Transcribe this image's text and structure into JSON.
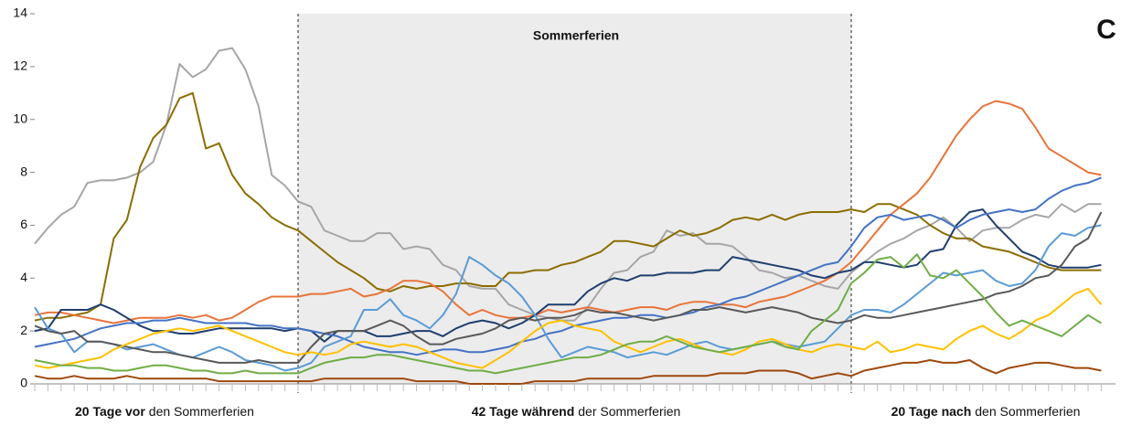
{
  "chart_data": {
    "type": "line",
    "annotations": {
      "shaded_label": "Sommerferien",
      "panel": "C"
    },
    "periods": [
      {
        "bold": "20 Tage vor",
        "text": "den Sommerferien"
      },
      {
        "bold": "42 Tage während",
        "text": "der Sommerferien"
      },
      {
        "bold": "20 Tage nach",
        "text": "den Sommerferien"
      }
    ],
    "categories": [
      null,
      null,
      null,
      null,
      null,
      null,
      null,
      null,
      null,
      null,
      null,
      null,
      null,
      null,
      null,
      null,
      null,
      null,
      null,
      null,
      null,
      null,
      null,
      null,
      null,
      null,
      null,
      null,
      null,
      null,
      null,
      null,
      null,
      null,
      null,
      null,
      null,
      null,
      null,
      null,
      null,
      null,
      null,
      null,
      null,
      null,
      null,
      null,
      null,
      null,
      null,
      null,
      null,
      null,
      null,
      null,
      null,
      null,
      null,
      null,
      null,
      null,
      null,
      null,
      null,
      null,
      null,
      null,
      null,
      null,
      null,
      null,
      null,
      null,
      null,
      null,
      null,
      null,
      null,
      null,
      null,
      null
    ],
    "ylim": [
      0,
      14
    ],
    "yticks": [
      0,
      2,
      4,
      6,
      8,
      10,
      12,
      14
    ],
    "series": [
      {
        "color": "#a6a6a6",
        "values": [
          5.3,
          5.9,
          6.4,
          6.7,
          7.6,
          7.7,
          7.7,
          7.8,
          8.0,
          8.4,
          9.8,
          12.1,
          11.6,
          11.9,
          12.6,
          12.7,
          11.9,
          10.5,
          7.9,
          7.5,
          6.9,
          6.7,
          5.8,
          5.6,
          5.4,
          5.4,
          5.7,
          5.7,
          5.1,
          5.2,
          5.1,
          4.5,
          4.3,
          3.7,
          3.6,
          3.6,
          3.0,
          2.8,
          2.6,
          2.5,
          2.4,
          2.4,
          2.9,
          3.6,
          4.2,
          4.3,
          4.8,
          5.0,
          5.8,
          5.6,
          5.7,
          5.3,
          5.3,
          5.2,
          4.8,
          4.3,
          4.2,
          4.0,
          4.1,
          3.9,
          3.7,
          3.6,
          4.2,
          4.6,
          5.0,
          5.3,
          5.5,
          5.8,
          6.0,
          6.3,
          5.9,
          5.4,
          5.8,
          5.9,
          5.9,
          6.2,
          6.4,
          6.3,
          6.8,
          6.5,
          6.8,
          6.8
        ]
      },
      {
        "color": "#8b6d00",
        "values": [
          2.4,
          2.5,
          2.5,
          2.6,
          2.7,
          3.0,
          5.5,
          6.2,
          8.2,
          9.3,
          9.8,
          10.8,
          11.0,
          8.9,
          9.1,
          7.9,
          7.2,
          6.8,
          6.3,
          6.0,
          5.8,
          5.4,
          5.0,
          4.6,
          4.3,
          4.0,
          3.6,
          3.5,
          3.7,
          3.6,
          3.7,
          3.7,
          3.8,
          3.8,
          3.7,
          3.7,
          4.2,
          4.2,
          4.3,
          4.3,
          4.5,
          4.6,
          4.8,
          5.0,
          5.4,
          5.4,
          5.3,
          5.2,
          5.5,
          5.8,
          5.6,
          5.7,
          5.9,
          6.2,
          6.3,
          6.2,
          6.4,
          6.2,
          6.4,
          6.5,
          6.5,
          6.5,
          6.6,
          6.5,
          6.8,
          6.8,
          6.6,
          6.4,
          6.0,
          5.7,
          5.5,
          5.5,
          5.2,
          5.1,
          5.0,
          4.8,
          4.6,
          4.4,
          4.3,
          4.3,
          4.3,
          4.3
        ]
      },
      {
        "color": "#e8743b",
        "values": [
          2.6,
          2.7,
          2.7,
          2.6,
          2.5,
          2.4,
          2.3,
          2.4,
          2.5,
          2.5,
          2.5,
          2.6,
          2.5,
          2.6,
          2.4,
          2.5,
          2.8,
          3.1,
          3.3,
          3.3,
          3.3,
          3.4,
          3.4,
          3.5,
          3.6,
          3.3,
          3.4,
          3.6,
          3.9,
          3.9,
          3.8,
          3.5,
          3.0,
          2.6,
          2.8,
          2.6,
          2.5,
          2.5,
          2.6,
          2.8,
          2.7,
          2.8,
          2.9,
          2.8,
          2.7,
          2.8,
          2.9,
          2.9,
          2.8,
          3.0,
          3.1,
          3.1,
          3.0,
          3.0,
          2.9,
          3.1,
          3.2,
          3.3,
          3.5,
          3.7,
          3.9,
          4.2,
          4.6,
          5.2,
          5.8,
          6.4,
          6.8,
          7.2,
          7.8,
          8.6,
          9.4,
          10.0,
          10.5,
          10.7,
          10.6,
          10.4,
          9.7,
          8.9,
          8.6,
          8.3,
          8.0,
          7.9
        ]
      },
      {
        "color": "#1f3e6e",
        "values": [
          2.0,
          2.1,
          2.8,
          2.8,
          2.8,
          3.0,
          2.8,
          2.5,
          2.2,
          2.0,
          2.0,
          1.9,
          1.9,
          2.0,
          2.1,
          2.1,
          2.1,
          2.1,
          2.1,
          2.0,
          2.1,
          2.0,
          1.6,
          2.0,
          2.0,
          2.0,
          1.8,
          1.8,
          1.9,
          2.0,
          2.0,
          1.8,
          2.1,
          2.3,
          2.4,
          2.3,
          2.1,
          2.3,
          2.6,
          3.0,
          3.0,
          3.0,
          3.5,
          3.8,
          4.0,
          3.9,
          4.1,
          4.1,
          4.2,
          4.2,
          4.2,
          4.3,
          4.3,
          4.8,
          4.7,
          4.6,
          4.5,
          4.4,
          4.3,
          4.1,
          4.0,
          4.2,
          4.3,
          4.6,
          4.6,
          4.5,
          4.4,
          4.5,
          5.0,
          5.1,
          6.0,
          6.5,
          6.6,
          6.0,
          5.5,
          5.0,
          4.8,
          4.5,
          4.4,
          4.4,
          4.4,
          4.5
        ]
      },
      {
        "color": "#4472c4",
        "values": [
          1.4,
          1.5,
          1.6,
          1.7,
          1.9,
          2.1,
          2.2,
          2.3,
          2.3,
          2.4,
          2.4,
          2.5,
          2.4,
          2.3,
          2.3,
          2.3,
          2.3,
          2.2,
          2.2,
          2.1,
          2.1,
          2.0,
          1.9,
          1.8,
          1.6,
          1.4,
          1.3,
          1.2,
          1.2,
          1.1,
          1.2,
          1.3,
          1.3,
          1.2,
          1.2,
          1.3,
          1.4,
          1.6,
          1.7,
          1.9,
          2.0,
          2.2,
          2.3,
          2.4,
          2.5,
          2.5,
          2.6,
          2.6,
          2.5,
          2.6,
          2.7,
          2.9,
          3.0,
          3.2,
          3.3,
          3.5,
          3.7,
          3.9,
          4.1,
          4.3,
          4.5,
          4.6,
          5.2,
          5.9,
          6.3,
          6.4,
          6.2,
          6.3,
          6.4,
          6.2,
          5.9,
          6.2,
          6.4,
          6.5,
          6.6,
          6.5,
          6.6,
          7.0,
          7.3,
          7.5,
          7.6,
          7.8
        ]
      },
      {
        "color": "#5b9bd5",
        "values": [
          2.9,
          2.1,
          1.9,
          1.2,
          1.6,
          1.6,
          1.5,
          1.3,
          1.4,
          1.5,
          1.3,
          1.1,
          1.0,
          1.2,
          1.4,
          1.2,
          0.9,
          0.8,
          0.7,
          0.5,
          0.6,
          0.8,
          1.4,
          1.6,
          1.8,
          2.8,
          2.8,
          3.2,
          2.6,
          2.4,
          2.1,
          2.6,
          3.4,
          4.8,
          4.5,
          4.1,
          3.8,
          3.3,
          2.6,
          1.7,
          1.0,
          1.2,
          1.4,
          1.3,
          1.2,
          1.0,
          1.1,
          1.2,
          1.1,
          1.3,
          1.5,
          1.6,
          1.4,
          1.3,
          1.4,
          1.5,
          1.6,
          1.5,
          1.4,
          1.5,
          1.6,
          2.1,
          2.6,
          2.8,
          2.8,
          2.7,
          3.0,
          3.4,
          3.8,
          4.2,
          4.1,
          4.2,
          4.3,
          3.9,
          3.7,
          3.8,
          4.3,
          5.2,
          5.7,
          5.6,
          5.9,
          6.0
        ]
      },
      {
        "color": "#595959",
        "values": [
          2.2,
          2.0,
          1.9,
          2.0,
          1.6,
          1.6,
          1.5,
          1.4,
          1.3,
          1.2,
          1.2,
          1.1,
          1.0,
          0.9,
          0.8,
          0.8,
          0.8,
          0.9,
          0.8,
          0.8,
          0.8,
          1.4,
          1.9,
          2.0,
          2.0,
          2.0,
          2.2,
          2.4,
          2.2,
          1.8,
          1.5,
          1.5,
          1.7,
          1.8,
          1.9,
          2.1,
          2.4,
          2.5,
          2.4,
          2.5,
          2.5,
          2.6,
          2.8,
          2.7,
          2.7,
          2.6,
          2.5,
          2.4,
          2.5,
          2.6,
          2.8,
          2.8,
          2.9,
          2.8,
          2.7,
          2.8,
          2.9,
          2.8,
          2.7,
          2.5,
          2.4,
          2.3,
          2.4,
          2.6,
          2.5,
          2.5,
          2.6,
          2.7,
          2.8,
          2.9,
          3.0,
          3.1,
          3.2,
          3.4,
          3.5,
          3.7,
          4.0,
          4.1,
          4.5,
          5.2,
          5.5,
          6.5
        ]
      },
      {
        "color": "#ffc000",
        "values": [
          0.7,
          0.6,
          0.7,
          0.8,
          0.9,
          1.0,
          1.3,
          1.5,
          1.7,
          1.9,
          2.0,
          2.1,
          2.0,
          2.1,
          2.2,
          2.0,
          1.8,
          1.6,
          1.4,
          1.2,
          1.1,
          1.2,
          1.1,
          1.2,
          1.5,
          1.6,
          1.5,
          1.4,
          1.5,
          1.4,
          1.2,
          1.0,
          0.8,
          0.7,
          0.6,
          0.9,
          1.2,
          1.6,
          2.0,
          2.3,
          2.4,
          2.2,
          2.1,
          2.0,
          1.6,
          1.4,
          1.2,
          1.4,
          1.6,
          1.7,
          1.5,
          1.3,
          1.2,
          1.1,
          1.3,
          1.6,
          1.7,
          1.5,
          1.3,
          1.2,
          1.4,
          1.5,
          1.4,
          1.3,
          1.6,
          1.2,
          1.3,
          1.5,
          1.4,
          1.3,
          1.7,
          2.0,
          2.2,
          1.9,
          1.7,
          2.0,
          2.4,
          2.6,
          3.0,
          3.4,
          3.6,
          3.0
        ]
      },
      {
        "color": "#70ad47",
        "values": [
          0.9,
          0.8,
          0.7,
          0.7,
          0.6,
          0.6,
          0.5,
          0.5,
          0.6,
          0.7,
          0.7,
          0.6,
          0.5,
          0.5,
          0.4,
          0.4,
          0.5,
          0.4,
          0.4,
          0.4,
          0.4,
          0.6,
          0.8,
          0.9,
          1.0,
          1.0,
          1.1,
          1.1,
          1.0,
          0.9,
          0.8,
          0.7,
          0.6,
          0.5,
          0.5,
          0.4,
          0.5,
          0.6,
          0.7,
          0.8,
          0.9,
          1.0,
          1.0,
          1.1,
          1.3,
          1.5,
          1.6,
          1.6,
          1.8,
          1.6,
          1.4,
          1.3,
          1.2,
          1.3,
          1.4,
          1.5,
          1.6,
          1.4,
          1.3,
          2.0,
          2.4,
          2.8,
          3.8,
          4.2,
          4.7,
          4.8,
          4.4,
          4.9,
          4.1,
          4.0,
          4.3,
          3.8,
          3.3,
          2.7,
          2.2,
          2.4,
          2.2,
          2.0,
          1.8,
          2.2,
          2.6,
          2.3
        ]
      },
      {
        "color": "#9e480e",
        "values": [
          0.3,
          0.2,
          0.2,
          0.3,
          0.2,
          0.2,
          0.2,
          0.3,
          0.2,
          0.2,
          0.2,
          0.2,
          0.2,
          0.2,
          0.1,
          0.1,
          0.1,
          0.1,
          0.1,
          0.1,
          0.1,
          0.1,
          0.2,
          0.2,
          0.2,
          0.2,
          0.2,
          0.2,
          0.2,
          0.1,
          0.1,
          0.1,
          0.1,
          0.0,
          0.0,
          0.0,
          0.0,
          0.0,
          0.1,
          0.1,
          0.1,
          0.1,
          0.2,
          0.2,
          0.2,
          0.2,
          0.2,
          0.3,
          0.3,
          0.3,
          0.3,
          0.3,
          0.4,
          0.4,
          0.4,
          0.5,
          0.5,
          0.5,
          0.4,
          0.2,
          0.3,
          0.4,
          0.3,
          0.5,
          0.6,
          0.7,
          0.8,
          0.8,
          0.9,
          0.8,
          0.8,
          0.9,
          0.6,
          0.4,
          0.6,
          0.7,
          0.8,
          0.8,
          0.7,
          0.6,
          0.6,
          0.5
        ]
      }
    ]
  }
}
